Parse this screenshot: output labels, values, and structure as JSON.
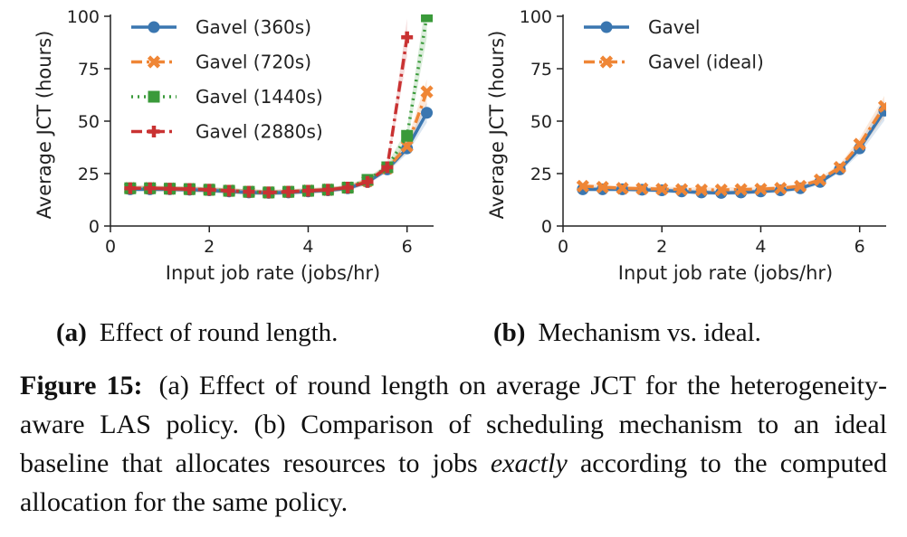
{
  "figure": {
    "subcaption_a_label": "(a)",
    "subcaption_a_text": "Effect of round length.",
    "subcaption_b_label": "(b)",
    "subcaption_b_text": "Mechanism vs. ideal.",
    "caption_label": "Figure 15:",
    "caption_part1": "(a) Effect of round length on average JCT for the heterogeneity-aware LAS policy. (b) Comparison of scheduling mechanism to an ideal baseline that allocates resources to jobs ",
    "caption_emph": "exactly",
    "caption_part2": " according to the computed allocation for the same policy."
  },
  "chart_data": [
    {
      "type": "line",
      "xlabel": "Input job rate (jobs/hr)",
      "ylabel": "Average JCT (hours)",
      "xlim": [
        0,
        6.5
      ],
      "ylim": [
        0,
        100
      ],
      "xticks": [
        0,
        2,
        4,
        6
      ],
      "yticks": [
        0,
        25,
        50,
        75,
        100
      ],
      "legend_position": "top-left",
      "grid": false,
      "series": [
        {
          "name": "Gavel (360s)",
          "color": "#3a76b0",
          "marker": "circle",
          "dash": "solid",
          "x": [
            0.4,
            0.8,
            1.2,
            1.6,
            2.0,
            2.4,
            2.8,
            3.2,
            3.6,
            4.0,
            4.4,
            4.8,
            5.2,
            5.6,
            6.0,
            6.4
          ],
          "y": [
            17.5,
            17.5,
            17.5,
            17.3,
            17.0,
            16.5,
            16.0,
            15.8,
            16.0,
            16.5,
            17.0,
            18.0,
            21.0,
            27.0,
            37.0,
            54.0
          ]
        },
        {
          "name": "Gavel (720s)",
          "color": "#ef8636",
          "marker": "x",
          "dash": "dashdot",
          "x": [
            0.4,
            0.8,
            1.2,
            1.6,
            2.0,
            2.4,
            2.8,
            3.2,
            3.6,
            4.0,
            4.4,
            4.8,
            5.2,
            5.6,
            6.0,
            6.4
          ],
          "y": [
            18.0,
            18.0,
            17.8,
            17.6,
            17.3,
            16.8,
            16.3,
            16.0,
            16.3,
            16.8,
            17.3,
            18.3,
            21.5,
            27.5,
            38.0,
            64.0
          ]
        },
        {
          "name": "Gavel (1440s)",
          "color": "#3a9a3a",
          "marker": "square",
          "dash": "dotted",
          "x": [
            0.4,
            0.8,
            1.2,
            1.6,
            2.0,
            2.4,
            2.8,
            3.2,
            3.6,
            4.0,
            4.4,
            4.8,
            5.2,
            5.6,
            6.0,
            6.4
          ],
          "y": [
            18.0,
            18.0,
            17.8,
            17.6,
            17.3,
            16.8,
            16.3,
            16.0,
            16.3,
            16.8,
            17.3,
            18.3,
            22.0,
            28.0,
            43.0,
            100.0
          ]
        },
        {
          "name": "Gavel (2880s)",
          "color": "#c93232",
          "marker": "plus",
          "dash": "dashdot",
          "x": [
            0.4,
            0.8,
            1.2,
            1.6,
            2.0,
            2.4,
            2.8,
            3.2,
            3.6,
            4.0,
            4.4,
            4.8,
            5.2,
            5.6,
            6.0
          ],
          "y": [
            18.0,
            18.0,
            17.8,
            17.6,
            17.3,
            16.8,
            16.3,
            16.0,
            16.3,
            16.8,
            17.3,
            18.3,
            21.0,
            28.0,
            90.0
          ]
        }
      ]
    },
    {
      "type": "line",
      "xlabel": "Input job rate (jobs/hr)",
      "ylabel": "Average JCT (hours)",
      "xlim": [
        0,
        6.5
      ],
      "ylim": [
        0,
        100
      ],
      "xticks": [
        0,
        2,
        4,
        6
      ],
      "yticks": [
        0,
        25,
        50,
        75,
        100
      ],
      "legend_position": "top-left",
      "grid": false,
      "series": [
        {
          "name": "Gavel",
          "color": "#3a76b0",
          "marker": "circle",
          "dash": "solid",
          "x": [
            0.4,
            0.8,
            1.2,
            1.6,
            2.0,
            2.4,
            2.8,
            3.2,
            3.6,
            4.0,
            4.4,
            4.8,
            5.2,
            5.6,
            6.0,
            6.5
          ],
          "y": [
            17.5,
            17.5,
            17.5,
            17.3,
            17.0,
            16.5,
            16.0,
            15.8,
            16.0,
            16.5,
            17.0,
            18.0,
            21.0,
            27.0,
            37.0,
            55.0
          ]
        },
        {
          "name": "Gavel (ideal)",
          "color": "#ef8636",
          "marker": "x",
          "dash": "dashdot",
          "x": [
            0.4,
            0.8,
            1.2,
            1.6,
            2.0,
            2.4,
            2.8,
            3.2,
            3.6,
            4.0,
            4.4,
            4.8,
            5.2,
            5.6,
            6.0,
            6.5
          ],
          "y": [
            19.0,
            18.5,
            18.0,
            17.8,
            17.6,
            17.4,
            17.2,
            17.2,
            17.4,
            17.6,
            18.0,
            19.0,
            22.0,
            28.0,
            39.0,
            57.0
          ]
        }
      ]
    }
  ]
}
